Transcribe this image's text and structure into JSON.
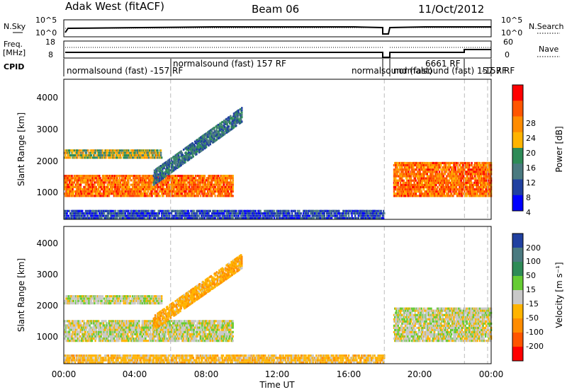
{
  "header": {
    "station": "Adak West (fitACF)",
    "beam": "Beam 06",
    "date": "11/Oct/2012"
  },
  "top_panels": {
    "nsky_label": "N.Sky",
    "nsearch_label": "N.Search",
    "nsky_ticks": [
      "10^5",
      "10^0"
    ],
    "nsearch_ticks": [
      "10^5",
      "10^0"
    ],
    "freq_label": "Freq.",
    "freq_unit": "[MHz]",
    "freq_ticks": [
      "18",
      "8"
    ],
    "nave_label": "Nave",
    "nave_ticks": [
      "60",
      "0"
    ],
    "cpid_label": "CPID"
  },
  "cpid_segments": [
    {
      "text": "normalsound (fast) -157 RF"
    },
    {
      "text": "normalsound (fast) 157 RF"
    },
    {
      "text": "normalsound (fast)"
    },
    {
      "text": "normalsound (fast) 157 RF"
    },
    {
      "text": "6661 RF"
    },
    {
      "text": "-157 RF"
    }
  ],
  "x_axis": {
    "label": "Time UT",
    "ticks": [
      "00:00",
      "04:00",
      "08:00",
      "12:00",
      "16:00",
      "20:00",
      "00:00"
    ]
  },
  "panels": [
    {
      "name": "power",
      "ylabel": "Slant Range [km]",
      "yticks": [
        "4000",
        "3000",
        "2000",
        "1000"
      ],
      "colorbar_label": "Power [dB]",
      "colorbar_ticks": [
        "28",
        "24",
        "20",
        "16",
        "12",
        "8",
        "4"
      ],
      "colors": [
        "#ff0000",
        "#ff5500",
        "#ff8c00",
        "#ffb400",
        "#2e8b57",
        "#4a7a80",
        "#2040a0",
        "#0000ff"
      ]
    },
    {
      "name": "velocity",
      "ylabel": "Slant Range [km]",
      "yticks": [
        "4000",
        "3000",
        "2000",
        "1000"
      ],
      "colorbar_label": "Velocity [m s⁻¹]",
      "colorbar_ticks": [
        "200",
        "100",
        "50",
        "15",
        "-15",
        "-50",
        "-100",
        "-200"
      ],
      "colors": [
        "#2040a0",
        "#4a7a80",
        "#2e8b57",
        "#66cc33",
        "#c8c8c8",
        "#ffb400",
        "#ff8c00",
        "#ff5500",
        "#ff0000"
      ]
    }
  ],
  "chart_data": [
    {
      "type": "heatmap",
      "title": "Adak West (fitACF) Beam 06 11/Oct/2012",
      "xlabel": "Time UT",
      "ylabel": "Slant Range [km]",
      "xlim": [
        "00:00",
        "24:00"
      ],
      "ylim": [
        200,
        4600
      ],
      "colorbar": "Power [dB]",
      "clim": [
        0,
        30
      ],
      "features": [
        {
          "desc": "main F-region echo band",
          "t_start": 0,
          "t_end": 9.5,
          "range_km": [
            900,
            1600
          ],
          "power_db": 28
        },
        {
          "desc": "upper echo band",
          "t_start": 0,
          "t_end": 5.5,
          "range_km": [
            2100,
            2400
          ],
          "power_db": 20
        },
        {
          "desc": "rising echo arc",
          "t_start": 5,
          "t_end": 10,
          "range_km": [
            1500,
            3500
          ],
          "power_db": 14
        },
        {
          "desc": "near-range ground echo",
          "t_start": 0,
          "t_end": 18,
          "range_km": [
            200,
            500
          ],
          "power_db": 10
        },
        {
          "desc": "late-day echo band",
          "t_start": 18.5,
          "t_end": 24,
          "range_km": [
            900,
            2000
          ],
          "power_db": 28
        }
      ]
    },
    {
      "type": "heatmap",
      "title": "",
      "xlabel": "Time UT",
      "ylabel": "Slant Range [km]",
      "xlim": [
        "00:00",
        "24:00"
      ],
      "ylim": [
        200,
        4600
      ],
      "colorbar": "Velocity [m s⁻¹]",
      "clim": [
        -200,
        200
      ],
      "features": [
        {
          "desc": "main echo band near zero velocity",
          "t_start": 0,
          "t_end": 9.5,
          "range_km": [
            900,
            1600
          ],
          "velocity": 0
        },
        {
          "desc": "upper echo band",
          "t_start": 0,
          "t_end": 5.5,
          "range_km": [
            2100,
            2400
          ],
          "velocity": 0
        },
        {
          "desc": "rising arc with negative velocities",
          "t_start": 5,
          "t_end": 10,
          "range_km": [
            1500,
            3500
          ],
          "velocity": -40
        },
        {
          "desc": "near-range echoes",
          "t_start": 0,
          "t_end": 18,
          "range_km": [
            200,
            500
          ],
          "velocity": -30
        },
        {
          "desc": "late-day echo band",
          "t_start": 18.5,
          "t_end": 24,
          "range_km": [
            900,
            2000
          ],
          "velocity": 0
        }
      ]
    }
  ]
}
